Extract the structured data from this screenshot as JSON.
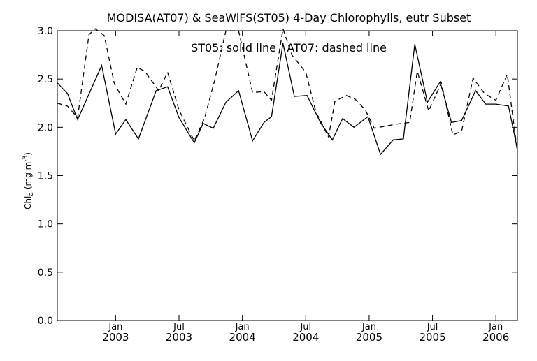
{
  "chart_data": {
    "type": "line",
    "title": "MODISA(AT07) & SeaWiFS(ST05) 4-Day Chlorophylls, eutr Subset",
    "annotation": "ST05: solid line   AT07: dashed line",
    "ylabel_main": "Chl",
    "ylabel_sub": "a",
    "ylabel_unit": "(mg m",
    "ylabel_sup": "-3",
    "ylabel_close": ")",
    "ylim": [
      0,
      3.0
    ],
    "xlim": [
      0,
      36.3
    ],
    "yticks": [
      {
        "value": 0.0,
        "label": "0.0"
      },
      {
        "value": 0.5,
        "label": "0.5"
      },
      {
        "value": 1.0,
        "label": "1.0"
      },
      {
        "value": 1.5,
        "label": "1.5"
      },
      {
        "value": 2.0,
        "label": "2.0"
      },
      {
        "value": 2.5,
        "label": "2.5"
      },
      {
        "value": 3.0,
        "label": "3.0"
      }
    ],
    "xticks": [
      {
        "value": 4.6,
        "month": "Jan",
        "year": "2003"
      },
      {
        "value": 9.6,
        "month": "Jul",
        "year": "2003"
      },
      {
        "value": 14.6,
        "month": "Jan",
        "year": "2004"
      },
      {
        "value": 19.6,
        "month": "Jul",
        "year": "2004"
      },
      {
        "value": 24.6,
        "month": "Jan",
        "year": "2005"
      },
      {
        "value": 29.6,
        "month": "Jul",
        "year": "2005"
      },
      {
        "value": 34.6,
        "month": "Jan",
        "year": "2006"
      }
    ],
    "series": [
      {
        "name": "ST05",
        "style": "solid",
        "x": [
          0,
          0.8,
          1.6,
          3.5,
          4.6,
          5.4,
          6.4,
          7.8,
          8.7,
          9.6,
          10.8,
          11.5,
          12.3,
          13.3,
          14.3,
          15.4,
          16.3,
          16.9,
          17.8,
          18.7,
          19.7,
          20.8,
          21.7,
          22.5,
          23.4,
          24.5,
          25.5,
          26.5,
          27.3,
          28.2,
          29.2,
          30.2,
          31.1,
          31.9,
          33.0,
          33.8,
          34.6,
          35.6,
          36.3
        ],
        "y": [
          2.46,
          2.35,
          2.08,
          2.64,
          1.93,
          2.08,
          1.88,
          2.38,
          2.42,
          2.1,
          1.84,
          2.04,
          1.99,
          2.26,
          2.38,
          1.86,
          2.05,
          2.11,
          2.87,
          2.32,
          2.33,
          2.04,
          1.87,
          2.09,
          2.0,
          2.11,
          1.72,
          1.87,
          1.88,
          2.86,
          2.26,
          2.47,
          2.05,
          2.07,
          2.38,
          2.24,
          2.24,
          2.22,
          1.77
        ]
      },
      {
        "name": "AT07",
        "style": "dashed",
        "x": [
          0,
          0.8,
          1.6,
          2.5,
          3.0,
          3.7,
          4.5,
          5.4,
          6.3,
          6.9,
          8.0,
          8.7,
          9.6,
          10.8,
          11.6,
          12.4,
          13.3,
          14.3,
          15.4,
          16.3,
          16.9,
          17.8,
          18.5,
          19.6,
          20.4,
          21.4,
          21.9,
          22.8,
          23.5,
          24.3,
          25.0,
          26.6,
          27.8,
          28.4,
          29.3,
          30.3,
          31.2,
          31.9,
          32.8,
          33.7,
          34.6,
          35.5,
          36.3
        ],
        "y": [
          2.25,
          2.22,
          2.1,
          2.96,
          3.02,
          2.95,
          2.45,
          2.24,
          2.62,
          2.58,
          2.38,
          2.57,
          2.18,
          1.86,
          2.09,
          2.48,
          3.0,
          3.0,
          2.36,
          2.37,
          2.28,
          3.02,
          2.75,
          2.57,
          2.16,
          1.9,
          2.27,
          2.33,
          2.29,
          2.18,
          1.99,
          2.03,
          2.05,
          2.58,
          2.17,
          2.46,
          1.92,
          1.96,
          2.51,
          2.35,
          2.28,
          2.55,
          1.75
        ]
      }
    ],
    "grid": false,
    "legend": "inside-top"
  }
}
